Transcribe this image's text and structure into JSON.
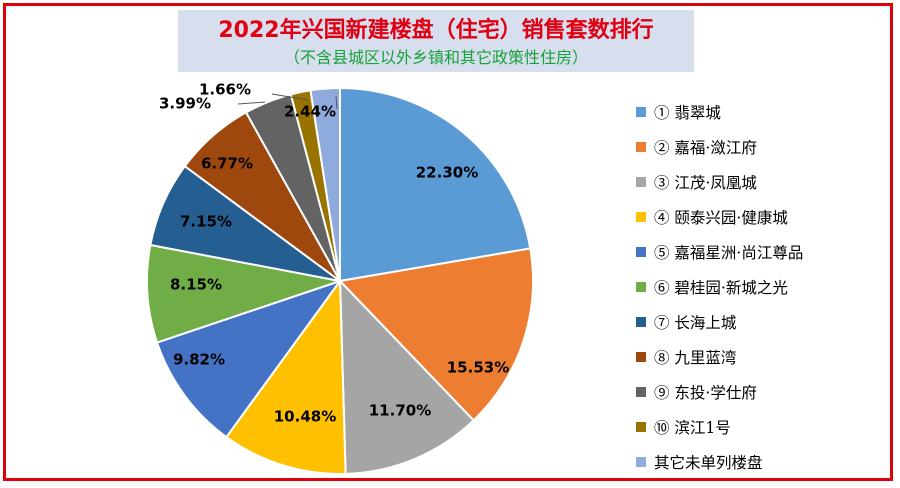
{
  "chart_data": {
    "type": "pie",
    "title": "2022年兴国新建楼盘（住宅）销售套数排行",
    "subtitle": "（不含县城区以外乡镇和其它政策性住房）",
    "legend_position": "right",
    "slices": [
      {
        "name": "① 翡翠城",
        "value": 22.3,
        "label": "22.30%",
        "color": "#5b9bd5"
      },
      {
        "name": "② 嘉福·潋江府",
        "value": 15.53,
        "label": "15.53%",
        "color": "#ed7d31"
      },
      {
        "name": "③ 江茂·凤凰城",
        "value": 11.7,
        "label": "11.70%",
        "color": "#a5a5a5"
      },
      {
        "name": "④ 颐泰兴园·健康城",
        "value": 10.48,
        "label": "10.48%",
        "color": "#ffc000"
      },
      {
        "name": "⑤ 嘉福星洲·尚江尊品",
        "value": 9.82,
        "label": "9.82%",
        "color": "#4472c4"
      },
      {
        "name": "⑥  碧桂园·新城之光",
        "value": 8.15,
        "label": "8.15%",
        "color": "#70ad47"
      },
      {
        "name": "⑦ 长海上城",
        "value": 7.15,
        "label": "7.15%",
        "color": "#255e91"
      },
      {
        "name": "⑧ 九里蓝湾",
        "value": 6.77,
        "label": "6.77%",
        "color": "#9e480e"
      },
      {
        "name": "⑨ 东投·学仕府",
        "value": 3.99,
        "label": "3.99%",
        "color": "#636363"
      },
      {
        "name": "⑩ 滨江1号",
        "value": 1.66,
        "label": "1.66%",
        "color": "#997300"
      },
      {
        "name": "其它未单列楼盘",
        "value": 2.44,
        "label": "2.44%",
        "color": "#8faadc"
      }
    ]
  }
}
